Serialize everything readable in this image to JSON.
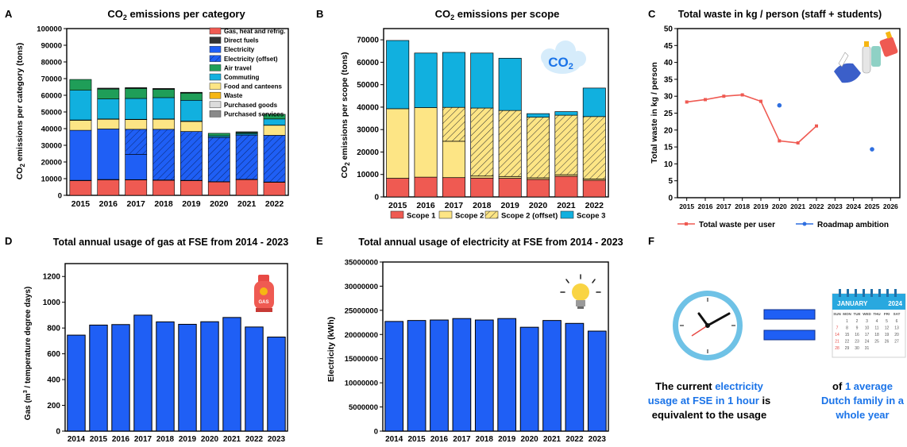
{
  "colors": {
    "gas_heat": "#ef5a52",
    "direct_fuels": "#333333",
    "electricity": "#1f5ff5",
    "air_travel": "#1f9e58",
    "commuting": "#11b0df",
    "food": "#fde585",
    "waste": "#f6b613",
    "purchased_goods": "#dcdcdc",
    "purchased_services": "#8a8a8a",
    "scope1": "#ef5a52",
    "scope2": "#fde585",
    "scope3": "#11b0df",
    "gas_bar": "#1f5ff5",
    "elec_bar": "#1f5ff5",
    "waste_line": "#ef5a52",
    "roadmap": "#2f6fe0",
    "highlight": "#1a73e8"
  },
  "panels": {
    "A": {
      "letter": "A",
      "title_pre": "CO",
      "title_sub": "2",
      "title_post": " emissions per category",
      "ylabel_pre": "CO",
      "ylabel_sub": "2",
      "ylabel_post": " emissions per category (tons)"
    },
    "B": {
      "letter": "B",
      "title_pre": "CO",
      "title_sub": "2",
      "title_post": " emissions per scope",
      "ylabel_pre": "CO",
      "ylabel_sub": "2",
      "ylabel_post": " emissions per scope (tons)",
      "badge_pre": "CO",
      "badge_sub": "2"
    },
    "C": {
      "letter": "C",
      "title": "Total waste in kg / person (staff + students)"
    },
    "D": {
      "letter": "D",
      "title": "Total annual usage of gas at FSE from 2014 - 2023",
      "ylabel_pre": "Gas (m",
      "ylabel_sup": "3",
      "ylabel_post": " / temperature degree days)",
      "gas_label": "GAS"
    },
    "E": {
      "letter": "E",
      "title": "Total annual usage of electricity at FSE from 2014 - 2023"
    },
    "F": {
      "letter": "F",
      "calendar_month": "JANUARY",
      "calendar_year": "2024",
      "calendar_days": [
        "SUN",
        "MON",
        "TUE",
        "WED",
        "THU",
        "FRI",
        "SAT"
      ],
      "left_text_1": "The current ",
      "left_text_hl": "electricity usage at FSE in 1 hour",
      "left_text_2": " is equivalent to the usage",
      "right_text_1": "of ",
      "right_text_hl": "1 average Dutch family in a whole year"
    }
  },
  "chart_data": [
    {
      "type": "bar",
      "stacked": true,
      "title": "CO2 emissions per category",
      "ylabel": "CO2 emissions per category (tons)",
      "categories": [
        "2015",
        "2016",
        "2017",
        "2018",
        "2019",
        "2020",
        "2021",
        "2022"
      ],
      "ylim": [
        0,
        100000
      ],
      "yticks": [
        0,
        10000,
        20000,
        30000,
        40000,
        50000,
        60000,
        70000,
        80000,
        90000,
        100000
      ],
      "legend_position": "top-right",
      "series": [
        {
          "name": "Gas, heat and refrig.",
          "values": [
            8800,
            9300,
            9200,
            9000,
            8800,
            8000,
            9400,
            7800
          ]
        },
        {
          "name": "Direct fuels",
          "values": [
            200,
            200,
            200,
            200,
            200,
            200,
            200,
            200
          ]
        },
        {
          "name": "Electricity",
          "values": [
            30000,
            30300,
            15200,
            0,
            0,
            0,
            0,
            0
          ]
        },
        {
          "name": "Electricity (offset)",
          "values": [
            0,
            0,
            15000,
            30400,
            29300,
            26500,
            26500,
            28000
          ]
        },
        {
          "name": "Air travel",
          "values": [
            0,
            0,
            0,
            0,
            0,
            0,
            0,
            0
          ]
        },
        {
          "name": "Commuting",
          "values": [
            0,
            0,
            0,
            0,
            0,
            0,
            0,
            0
          ]
        },
        {
          "name": "Food and canteens",
          "values": [
            6000,
            5800,
            5800,
            6000,
            6000,
            0,
            0,
            6000
          ]
        },
        {
          "name": "Waste",
          "values": [
            200,
            200,
            200,
            200,
            200,
            100,
            100,
            100
          ]
        },
        {
          "name": "Purchased goods",
          "values": [
            0,
            0,
            0,
            0,
            0,
            0,
            0,
            0
          ]
        },
        {
          "name": "Purchased services",
          "values": [
            0,
            0,
            0,
            0,
            0,
            0,
            0,
            0
          ]
        },
        {
          "name": "Commuting",
          "values": [
            17800,
            12000,
            12500,
            12800,
            12500,
            900,
            800,
            3700
          ]
        },
        {
          "name": "Air travel",
          "values": [
            6500,
            6000,
            6000,
            5000,
            4300,
            1500,
            600,
            2800
          ]
        },
        {
          "name": "Direct fuels",
          "values": [
            0,
            500,
            500,
            500,
            500,
            0,
            500,
            0
          ]
        }
      ]
    },
    {
      "type": "bar",
      "stacked": true,
      "title": "CO2 emissions per scope",
      "ylabel": "CO2 emissions per scope (tons)",
      "categories": [
        "2015",
        "2016",
        "2017",
        "2018",
        "2019",
        "2020",
        "2021",
        "2022"
      ],
      "ylim": [
        0,
        75000
      ],
      "yticks": [
        0,
        10000,
        20000,
        30000,
        40000,
        50000,
        60000,
        70000
      ],
      "legend_position": "bottom",
      "series": [
        {
          "name": "Scope 1",
          "values": [
            8300,
            8800,
            8600,
            8400,
            8300,
            7800,
            9200,
            7400
          ]
        },
        {
          "name": "Scope 2",
          "values": [
            31000,
            31000,
            16200,
            900,
            800,
            700,
            700,
            600
          ]
        },
        {
          "name": "Scope 2 (offset)",
          "values": [
            0,
            0,
            15100,
            30300,
            29400,
            27000,
            26500,
            27800
          ]
        },
        {
          "name": "Scope 3",
          "values": [
            30400,
            24300,
            24500,
            24500,
            23300,
            1600,
            1600,
            12700
          ]
        }
      ]
    },
    {
      "type": "line",
      "title": "Total waste in kg / person (staff + students)",
      "ylabel": "Total waste in kg / person",
      "x": [
        "2015",
        "2016",
        "2017",
        "2018",
        "2019",
        "2020",
        "2021",
        "2022",
        "2023",
        "2024",
        "2025",
        "2026"
      ],
      "ylim": [
        0,
        50
      ],
      "yticks": [
        0,
        5,
        10,
        15,
        20,
        25,
        30,
        35,
        40,
        45,
        50
      ],
      "legend_position": "bottom",
      "series": [
        {
          "name": "Total waste per user",
          "x": [
            "2015",
            "2016",
            "2017",
            "2018",
            "2019",
            "2020",
            "2021",
            "2022"
          ],
          "values": [
            28.3,
            29.0,
            30.0,
            30.4,
            28.5,
            16.8,
            16.2,
            21.2
          ]
        },
        {
          "name": "Roadmap ambition",
          "x": [
            "2020",
            "2025"
          ],
          "values": [
            27.3,
            14.3
          ]
        }
      ]
    },
    {
      "type": "bar",
      "title": "Total annual usage of gas at FSE from 2014 - 2023",
      "ylabel": "Gas (m3 / temperature degree days)",
      "categories": [
        "2014",
        "2015",
        "2016",
        "2017",
        "2018",
        "2019",
        "2020",
        "2021",
        "2022",
        "2023"
      ],
      "values": [
        745,
        823,
        827,
        900,
        848,
        829,
        849,
        882,
        808,
        730
      ],
      "ylim": [
        0,
        1300
      ],
      "yticks": [
        0,
        200,
        400,
        600,
        800,
        1000,
        1200
      ]
    },
    {
      "type": "bar",
      "title": "Total annual usage of electricity at FSE from 2014 - 2023",
      "ylabel": "Electricity (kWh)",
      "categories": [
        "2014",
        "2015",
        "2016",
        "2017",
        "2018",
        "2019",
        "2020",
        "2021",
        "2022",
        "2023"
      ],
      "values": [
        22700000,
        22900000,
        23000000,
        23300000,
        23000000,
        23300000,
        21500000,
        22900000,
        22300000,
        20700000
      ],
      "ylim": [
        0,
        35000000
      ],
      "yticks": [
        0,
        5000000,
        10000000,
        15000000,
        20000000,
        25000000,
        30000000,
        35000000
      ]
    }
  ]
}
